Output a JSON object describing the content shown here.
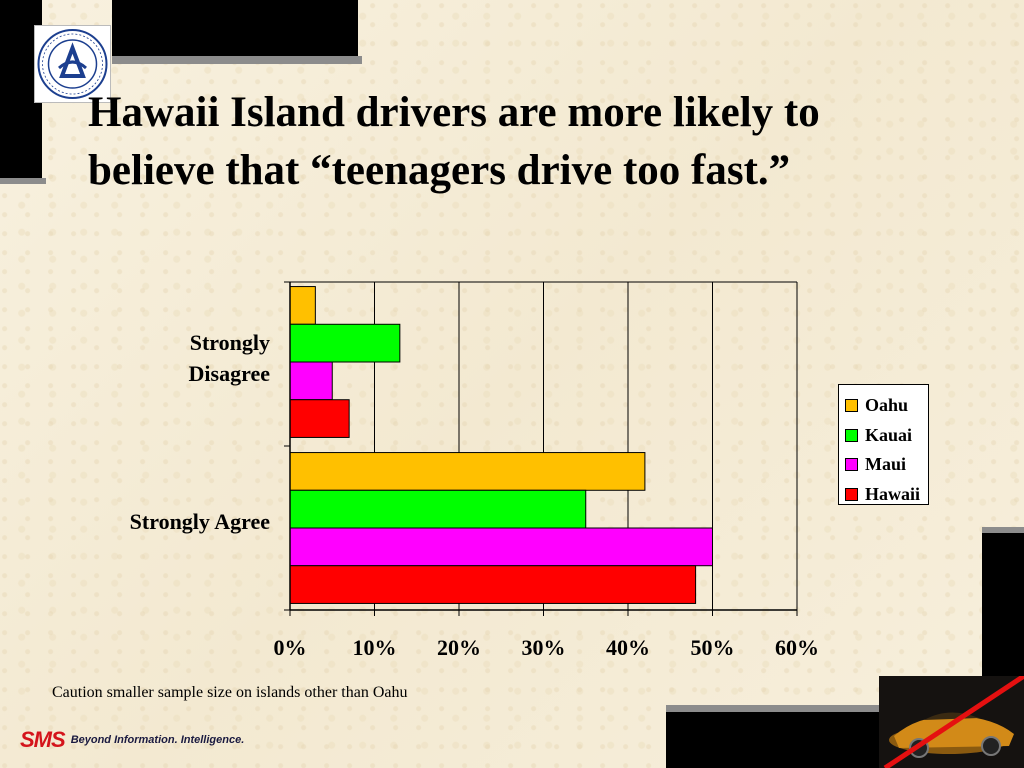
{
  "title": "Hawaii Island drivers are more likely to believe that “teenagers drive too fast.”",
  "caption": "Caution smaller sample size on islands other than Oahu",
  "footer": {
    "brand": "SMS",
    "tagline": "Beyond Information. Intelligence."
  },
  "icons": {
    "logo": "department-of-transportation-seal-icon",
    "car": "no-speeding-car-photo-icon"
  },
  "colors": {
    "oahu": "#FFC000",
    "kauai": "#00FF00",
    "maui": "#FF00FF",
    "hawaii": "#FF0000",
    "background": "#F6EEDB"
  },
  "chart_data": {
    "type": "bar",
    "orientation": "horizontal",
    "title": "",
    "xlabel": "",
    "ylabel": "",
    "categories": [
      "Strongly Disagree",
      "Strongly Agree"
    ],
    "series": [
      {
        "name": "Oahu",
        "values": [
          3,
          42
        ]
      },
      {
        "name": "Kauai",
        "values": [
          13,
          35
        ]
      },
      {
        "name": "Maui",
        "values": [
          5,
          50
        ]
      },
      {
        "name": "Hawaii",
        "values": [
          7,
          48
        ]
      }
    ],
    "xlim": [
      0,
      60
    ],
    "xticks": [
      "0%",
      "10%",
      "20%",
      "30%",
      "40%",
      "50%",
      "60%"
    ],
    "grid": "vertical",
    "legend": "right"
  }
}
